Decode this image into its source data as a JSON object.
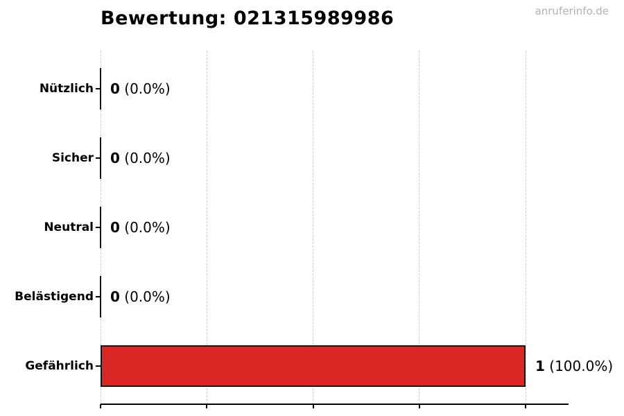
{
  "page": {
    "watermark": "anruferinfo.de"
  },
  "chart_data": {
    "type": "bar",
    "orientation": "horizontal",
    "title": "Bewertung: 021315989986",
    "phone_number": "021315989986",
    "categories": [
      "Nützlich",
      "Sicher",
      "Neutral",
      "Belästigend",
      "Gefährlich"
    ],
    "values": [
      0,
      0,
      0,
      0,
      1
    ],
    "value_labels": [
      {
        "count": "0",
        "percent": "(0.0%)"
      },
      {
        "count": "0",
        "percent": "(0.0%)"
      },
      {
        "count": "0",
        "percent": "(0.0%)"
      },
      {
        "count": "0",
        "percent": "(0.0%)"
      },
      {
        "count": "1",
        "percent": "(100.0%)"
      }
    ],
    "xlim": [
      0,
      1.1
    ],
    "x_ticks": [
      0,
      0.25,
      0.5,
      0.75,
      1.0
    ],
    "x_tick_labels": [],
    "grid": true,
    "legend": false,
    "colors": {
      "bar_fill": "#dc2727",
      "bar_edge": "#151515",
      "grid": "#cccccc",
      "axis": "#000000",
      "title": "#000000",
      "watermark": "#b3b3b3"
    }
  }
}
